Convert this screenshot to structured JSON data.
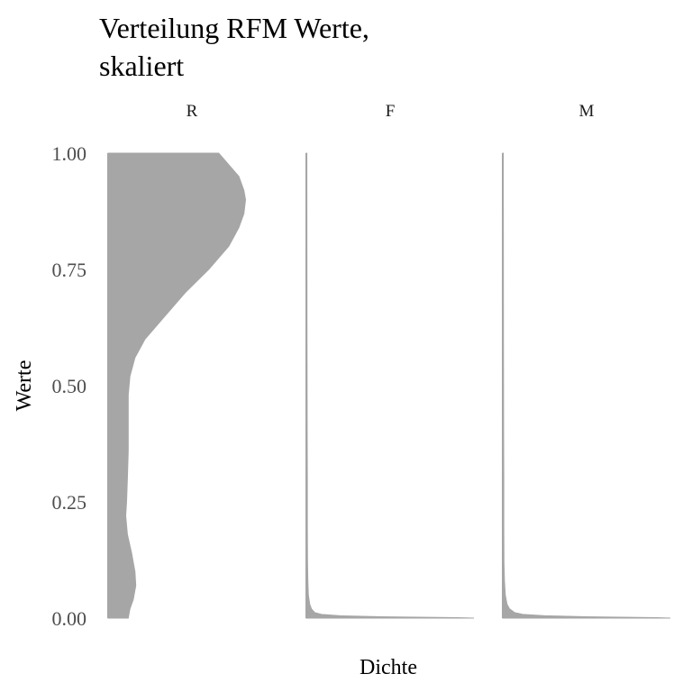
{
  "chart_data": {
    "type": "area",
    "title_lines": [
      "Verteilung RFM Werte,",
      "skaliert"
    ],
    "xlabel": "Dichte",
    "ylabel": "Werte",
    "ylim": [
      0,
      1
    ],
    "yticks": [
      "0.00",
      "0.25",
      "0.50",
      "0.75",
      "1.00"
    ],
    "ytick_values": [
      0,
      0.25,
      0.5,
      0.75,
      1
    ],
    "grid": false,
    "legend": "none",
    "fill_color": "#a6a6a6",
    "panels": [
      {
        "label": "R",
        "xmax": 1,
        "density": [
          [
            1.0,
            0.66
          ],
          [
            0.95,
            0.78
          ],
          [
            0.92,
            0.81
          ],
          [
            0.9,
            0.82
          ],
          [
            0.87,
            0.81
          ],
          [
            0.84,
            0.78
          ],
          [
            0.8,
            0.72
          ],
          [
            0.75,
            0.6
          ],
          [
            0.7,
            0.46
          ],
          [
            0.65,
            0.34
          ],
          [
            0.6,
            0.22
          ],
          [
            0.56,
            0.16
          ],
          [
            0.52,
            0.13
          ],
          [
            0.48,
            0.12
          ],
          [
            0.42,
            0.12
          ],
          [
            0.36,
            0.12
          ],
          [
            0.3,
            0.115
          ],
          [
            0.25,
            0.11
          ],
          [
            0.22,
            0.105
          ],
          [
            0.18,
            0.115
          ],
          [
            0.14,
            0.14
          ],
          [
            0.1,
            0.16
          ],
          [
            0.07,
            0.165
          ],
          [
            0.04,
            0.15
          ],
          [
            0.02,
            0.13
          ],
          [
            0.0,
            0.12
          ]
        ]
      },
      {
        "label": "F",
        "xmax": 1,
        "density": [
          [
            1.0,
            0.003
          ],
          [
            0.6,
            0.004
          ],
          [
            0.4,
            0.005
          ],
          [
            0.3,
            0.006
          ],
          [
            0.2,
            0.006
          ],
          [
            0.12,
            0.007
          ],
          [
            0.08,
            0.009
          ],
          [
            0.05,
            0.012
          ],
          [
            0.03,
            0.02
          ],
          [
            0.02,
            0.03
          ],
          [
            0.012,
            0.05
          ],
          [
            0.008,
            0.09
          ],
          [
            0.005,
            0.2
          ],
          [
            0.003,
            0.45
          ],
          [
            0.001,
            0.9
          ],
          [
            0.0,
            1.0
          ]
        ]
      },
      {
        "label": "M",
        "xmax": 1,
        "density": [
          [
            1.0,
            0.003
          ],
          [
            0.6,
            0.004
          ],
          [
            0.4,
            0.005
          ],
          [
            0.3,
            0.006
          ],
          [
            0.2,
            0.006
          ],
          [
            0.12,
            0.007
          ],
          [
            0.08,
            0.01
          ],
          [
            0.05,
            0.015
          ],
          [
            0.03,
            0.025
          ],
          [
            0.02,
            0.04
          ],
          [
            0.012,
            0.07
          ],
          [
            0.008,
            0.12
          ],
          [
            0.005,
            0.25
          ],
          [
            0.003,
            0.5
          ],
          [
            0.001,
            0.92
          ],
          [
            0.0,
            1.0
          ]
        ]
      }
    ]
  }
}
